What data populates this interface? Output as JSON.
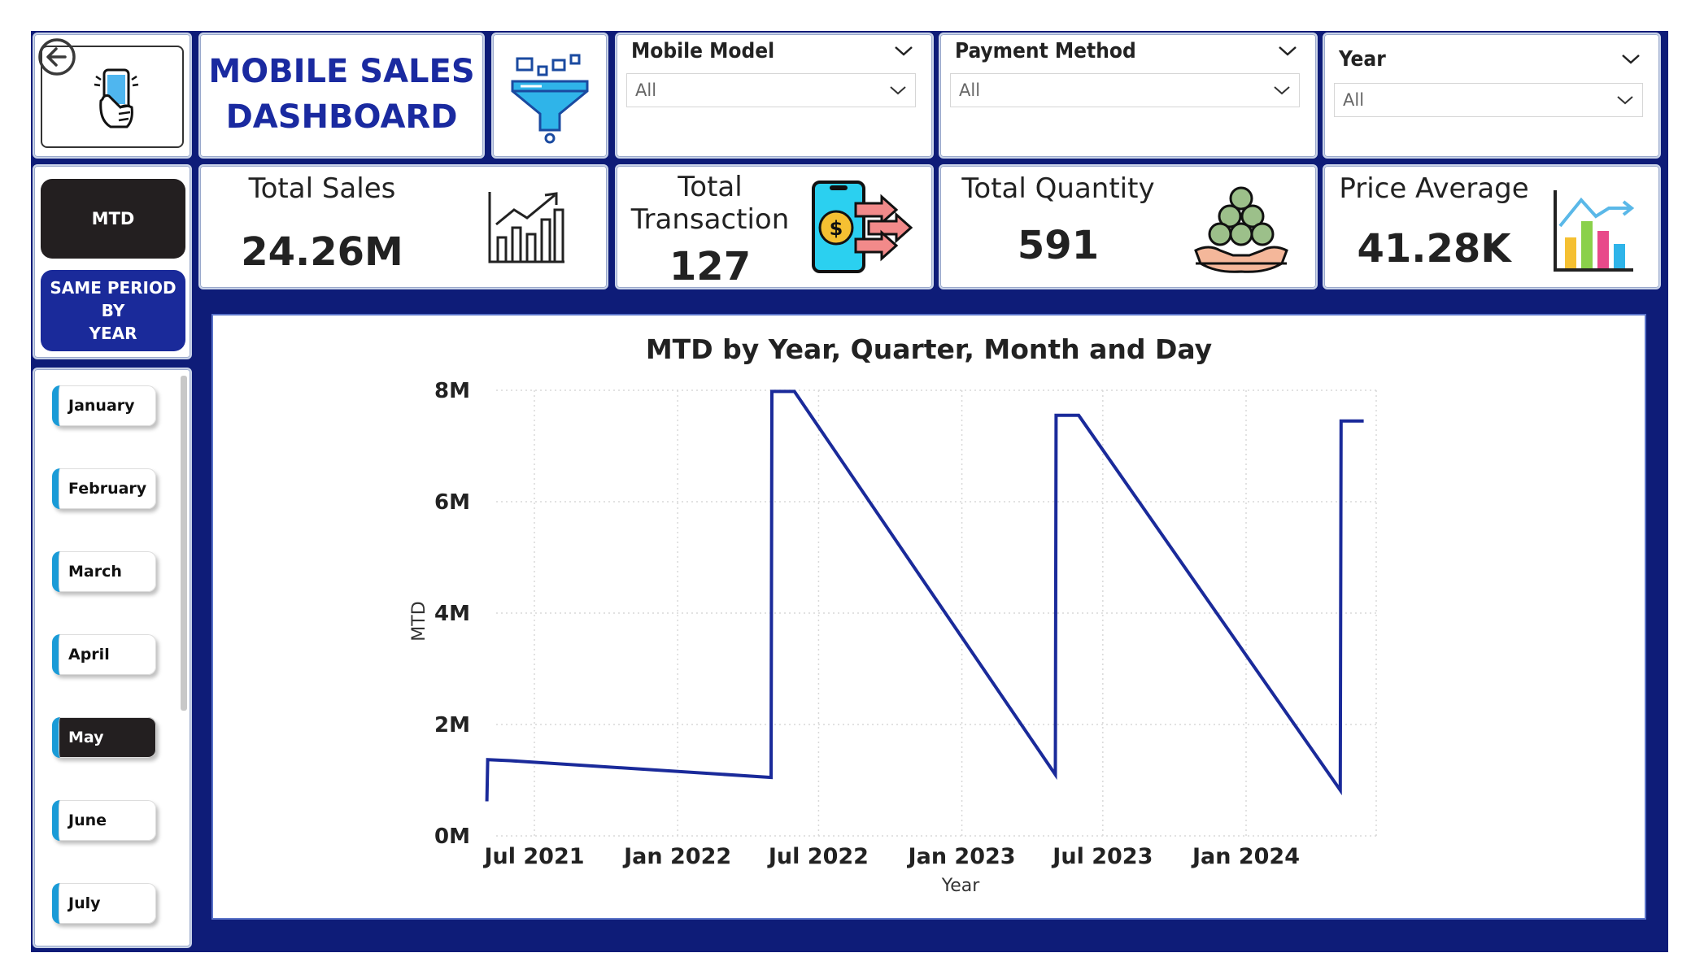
{
  "header": {
    "title_line1": "MOBILE SALES",
    "title_line2": "DASHBOARD"
  },
  "filters": {
    "mobile_model": {
      "label": "Mobile Model",
      "value": "All"
    },
    "payment_method": {
      "label": "Payment Method",
      "value": "All"
    },
    "year": {
      "label": "Year",
      "value": "All"
    }
  },
  "kpis": {
    "total_sales": {
      "label": "Total Sales",
      "value": "24.26M"
    },
    "total_transaction": {
      "label_line1": "Total",
      "label_line2": "Transaction",
      "value": "127"
    },
    "total_quantity": {
      "label": "Total Quantity",
      "value": "591"
    },
    "price_average": {
      "label": "Price Average",
      "value": "41.28K"
    }
  },
  "mode_buttons": {
    "mtd": "MTD",
    "same_period_line1": "SAME PERIOD BY",
    "same_period_line2": "YEAR"
  },
  "months": [
    "January",
    "February",
    "March",
    "April",
    "May",
    "June",
    "July"
  ],
  "selected_month": "May",
  "colors": {
    "frame": "#0e1c78",
    "title": "#1a2aa0",
    "line": "#1a2a9a",
    "month_accent": "#1a9bd7",
    "active_button": "#231f20",
    "same_period_button": "#1a2a9a"
  },
  "icons": {
    "logo": "phone-hand-icon",
    "filter": "funnel-icon",
    "back": "back-arrow-icon",
    "sales": "growth-bar-chart-icon",
    "transaction": "phone-money-transfer-icon",
    "quantity": "coins-hand-icon",
    "average": "colored-bar-chart-icon"
  },
  "chart_data": {
    "type": "line",
    "title": "MTD by Year, Quarter, Month and Day",
    "xlabel": "Year",
    "ylabel": "MTD",
    "x_tick_labels": [
      "Jul 2021",
      "Jan 2022",
      "Jul 2022",
      "Jan 2023",
      "Jul 2023",
      "Jan 2024"
    ],
    "y_tick_labels": [
      "0M",
      "2M",
      "4M",
      "6M",
      "8M"
    ],
    "ylim": [
      0,
      8
    ],
    "y_unit": "M",
    "grid": true,
    "series": [
      {
        "values": [
          {
            "x": "2021-05-01",
            "y": 0.62
          },
          {
            "x": "2021-05-02",
            "y": 1.37
          },
          {
            "x": "2021-05-31",
            "y": 1.35
          },
          {
            "x": "2022-05-01",
            "y": 1.05
          },
          {
            "x": "2022-05-02",
            "y": 7.98
          },
          {
            "x": "2022-05-31",
            "y": 7.98
          },
          {
            "x": "2023-05-01",
            "y": 1.1
          },
          {
            "x": "2023-05-02",
            "y": 7.55
          },
          {
            "x": "2023-05-31",
            "y": 7.55
          },
          {
            "x": "2024-05-01",
            "y": 0.82
          },
          {
            "x": "2024-05-02",
            "y": 7.45
          },
          {
            "x": "2024-05-31",
            "y": 7.45
          }
        ]
      }
    ]
  }
}
